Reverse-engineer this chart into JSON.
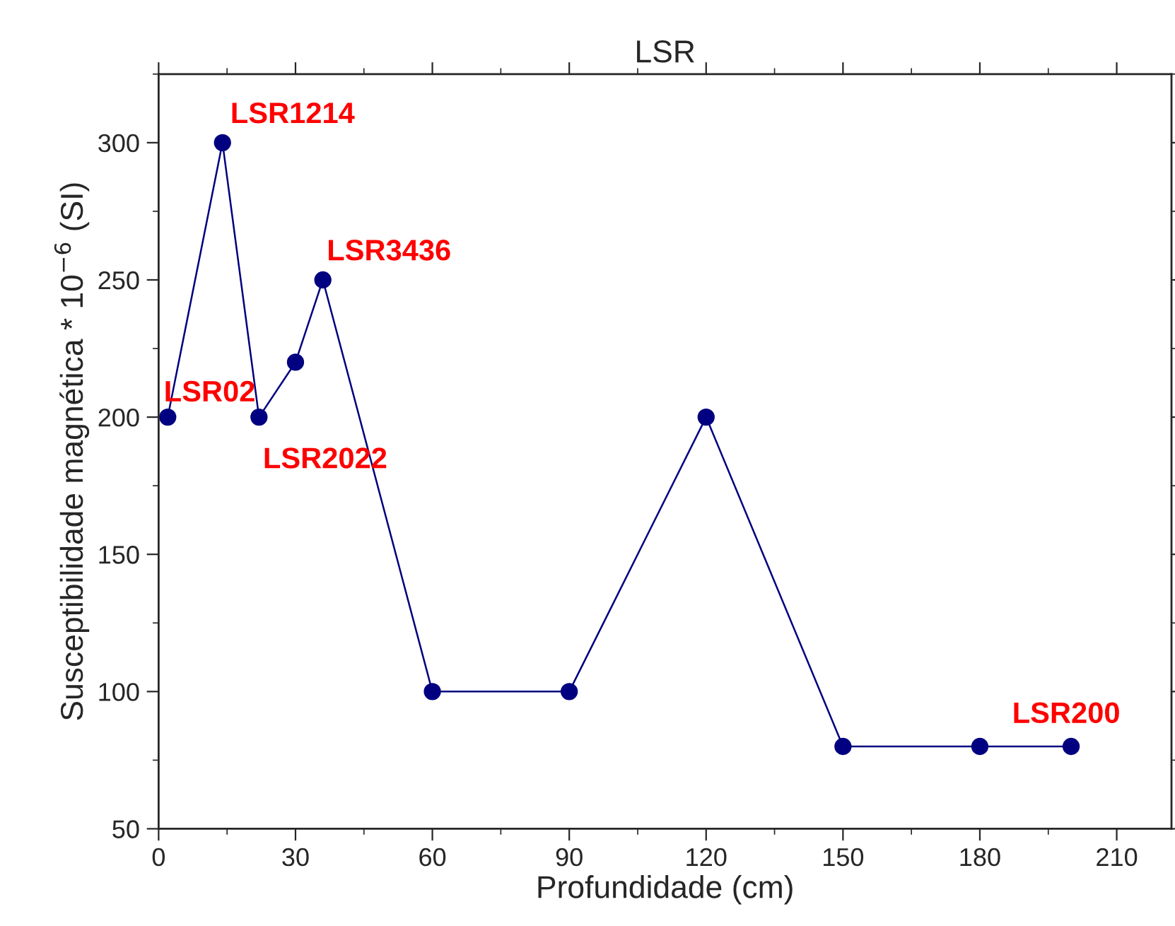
{
  "chart_data": {
    "type": "line",
    "title": "LSR",
    "xlabel": "Profundidade (cm)",
    "ylabel": "Susceptibilidade magnética * 10$^{−6}$ (SI)",
    "x": [
      2,
      14,
      22,
      30,
      36,
      60,
      90,
      120,
      150,
      180,
      200
    ],
    "series": [
      {
        "color": "#000080",
        "values": [
          200,
          300,
          200,
          220,
          250,
          100,
          100,
          200,
          80,
          80,
          80
        ]
      }
    ],
    "xlim": [
      0,
      222
    ],
    "xticks": [
      0,
      30,
      60,
      90,
      120,
      150,
      180,
      210
    ],
    "ylim": [
      50,
      325
    ],
    "yticks": [
      50,
      100,
      150,
      200,
      250,
      300
    ],
    "marker": "circle",
    "line_style": "solid",
    "grid": false,
    "legend": false,
    "annotations": [
      {
        "text": "LSR02",
        "x": 2,
        "y": 200
      },
      {
        "text": "LSR1214",
        "x": 14,
        "y": 300
      },
      {
        "text": "LSR2022",
        "x": 22,
        "y": 200
      },
      {
        "text": "LSR3436",
        "x": 36,
        "y": 250
      },
      {
        "text": "LSR200",
        "x": 200,
        "y": 80
      }
    ]
  }
}
